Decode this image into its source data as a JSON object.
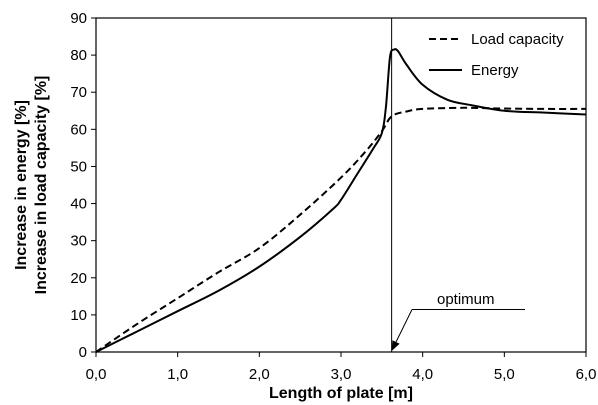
{
  "chart_data": {
    "type": "line",
    "xlabel": "Length of plate [m]",
    "ylabel_lines": [
      "Increase in energy [%]",
      "Increase in load capacity [%]"
    ],
    "xlim": [
      0,
      6
    ],
    "ylim": [
      0,
      90
    ],
    "xticks": [
      0,
      1,
      2,
      3,
      4,
      5,
      6
    ],
    "xtick_labels": [
      "0,0",
      "1,0",
      "2,0",
      "3,0",
      "4,0",
      "5,0",
      "6,0"
    ],
    "yticks": [
      0,
      10,
      20,
      30,
      40,
      50,
      60,
      70,
      80,
      90
    ],
    "ytick_labels": [
      "0",
      "10",
      "20",
      "30",
      "40",
      "50",
      "60",
      "70",
      "80",
      "90"
    ],
    "grid": false,
    "legend_position": "top-right",
    "series": [
      {
        "name": "Load capacity",
        "style": "dashed",
        "color": "#000000",
        "x": [
          0.0,
          0.5,
          1.0,
          1.5,
          2.0,
          2.5,
          3.0,
          3.3,
          3.5,
          3.62,
          3.8,
          4.0,
          4.5,
          5.0,
          5.5,
          6.0
        ],
        "y": [
          0.0,
          7.5,
          14.5,
          21.5,
          28.0,
          37.0,
          47.0,
          54.0,
          59.5,
          63.5,
          64.8,
          65.5,
          65.8,
          65.6,
          65.5,
          65.5
        ]
      },
      {
        "name": "Energy",
        "style": "solid",
        "color": "#000000",
        "x": [
          0.0,
          0.5,
          1.0,
          1.5,
          2.0,
          2.5,
          2.9,
          3.0,
          3.2,
          3.4,
          3.5,
          3.55,
          3.6,
          3.65,
          3.7,
          3.8,
          4.0,
          4.3,
          4.6,
          5.0,
          5.5,
          6.0
        ],
        "y": [
          0.0,
          5.5,
          11.0,
          16.5,
          23.0,
          31.0,
          38.5,
          41.0,
          48.0,
          55.0,
          59.0,
          66.0,
          79.5,
          81.5,
          81.0,
          77.5,
          72.0,
          68.0,
          66.5,
          65.0,
          64.5,
          64.0
        ]
      }
    ],
    "vertical_line_x": 3.62,
    "annotation": {
      "text": "optimum",
      "x": 3.62,
      "y": 0
    }
  }
}
